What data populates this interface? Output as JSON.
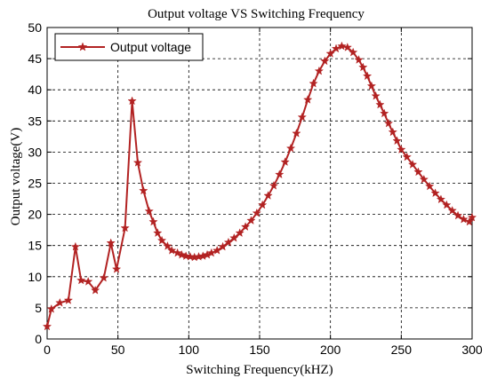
{
  "chart_data": {
    "type": "line",
    "title": "Output voltage VS Switching Frequency",
    "xlabel": "Switching Frequency(kHZ)",
    "ylabel": "Output voltage(V)",
    "xlim": [
      0,
      300
    ],
    "ylim": [
      0,
      50
    ],
    "xticks": [
      0,
      50,
      100,
      150,
      200,
      250,
      300
    ],
    "yticks": [
      0,
      5,
      10,
      15,
      20,
      25,
      30,
      35,
      40,
      45,
      50
    ],
    "grid": true,
    "legend_position": "top-left",
    "series": [
      {
        "name": "Output voltage",
        "color": "#b22222",
        "marker": "star",
        "x": [
          0,
          3,
          9,
          15,
          20,
          24,
          29,
          34,
          40,
          45,
          49,
          55,
          60,
          64,
          68,
          72,
          75,
          78,
          81,
          85,
          88,
          92,
          95,
          98,
          101,
          104,
          107,
          110,
          113,
          116,
          120,
          124,
          128,
          132,
          136,
          140,
          144,
          148,
          152,
          156,
          160,
          164,
          168,
          172,
          176,
          180,
          184,
          188,
          192,
          196,
          200,
          204,
          208,
          212,
          216,
          220,
          223,
          226,
          229,
          232,
          235,
          238,
          241,
          244,
          247,
          250,
          254,
          258,
          262,
          266,
          270,
          274,
          278,
          282,
          286,
          290,
          294,
          298,
          300
        ],
        "y": [
          2,
          4.8,
          5.8,
          6.2,
          14.8,
          9.4,
          9.2,
          7.8,
          9.8,
          15.4,
          11.2,
          17.8,
          38.2,
          28.3,
          23.8,
          20.5,
          18.8,
          17.0,
          15.8,
          14.9,
          14.2,
          13.8,
          13.5,
          13.3,
          13.2,
          13.1,
          13.2,
          13.3,
          13.5,
          13.8,
          14.2,
          14.8,
          15.5,
          16.2,
          17.0,
          18.0,
          19.0,
          20.2,
          21.5,
          23.0,
          24.6,
          26.4,
          28.4,
          30.6,
          33.0,
          35.6,
          38.4,
          41.0,
          43.0,
          44.6,
          45.8,
          46.6,
          47.0,
          46.8,
          46.0,
          44.8,
          43.6,
          42.2,
          40.6,
          39.0,
          37.6,
          36.2,
          34.6,
          33.2,
          31.8,
          30.4,
          29.2,
          28.0,
          26.8,
          25.6,
          24.5,
          23.4,
          22.4,
          21.5,
          20.6,
          19.8,
          19.2,
          18.8,
          19.5
        ]
      }
    ]
  }
}
